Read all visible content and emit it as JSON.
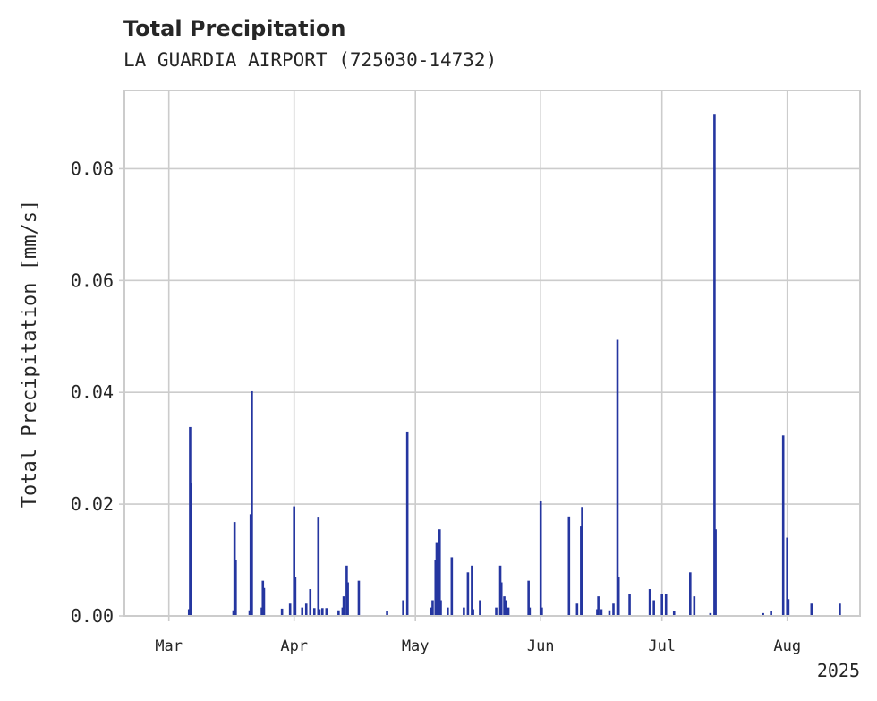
{
  "chart_data": {
    "type": "bar",
    "title": "Total Precipitation",
    "subtitle": "LA GUARDIA AIRPORT (725030-14732)",
    "ylabel": "Total Precipitation [mm/s]",
    "xlabel": "",
    "x_tick_labels": [
      "Mar",
      "Apr",
      "May",
      "Jun",
      "Jul",
      "Aug"
    ],
    "x_tick_dates": [
      "2025-03-01",
      "2025-04-01",
      "2025-05-01",
      "2025-06-01",
      "2025-07-01",
      "2025-08-01"
    ],
    "x_offset_label": "2025",
    "xlim": [
      "2025-02-18",
      "2025-08-19"
    ],
    "ylim": [
      0,
      0.094
    ],
    "y_ticks": [
      0.0,
      0.02,
      0.04,
      0.06,
      0.08
    ],
    "y_tick_labels": [
      "0.00",
      "0.02",
      "0.04",
      "0.06",
      "0.08"
    ],
    "grid": true,
    "legend": false,
    "color": "#2536a0",
    "series": [
      {
        "points": [
          [
            "2025-03-06",
            0.0012
          ],
          [
            "2025-03-06",
            0.0338
          ],
          [
            "2025-03-06",
            0.0237
          ],
          [
            "2025-03-17",
            0.001
          ],
          [
            "2025-03-17",
            0.0168
          ],
          [
            "2025-03-17",
            0.01
          ],
          [
            "2025-03-21",
            0.001
          ],
          [
            "2025-03-21",
            0.0182
          ],
          [
            "2025-03-21",
            0.0402
          ],
          [
            "2025-03-24",
            0.0015
          ],
          [
            "2025-03-24",
            0.0063
          ],
          [
            "2025-03-24",
            0.005
          ],
          [
            "2025-03-29",
            0.0013
          ],
          [
            "2025-03-31",
            0.0022
          ],
          [
            "2025-04-01",
            0.0196
          ],
          [
            "2025-04-01",
            0.007
          ],
          [
            "2025-04-03",
            0.0015
          ],
          [
            "2025-04-04",
            0.0022
          ],
          [
            "2025-04-05",
            0.0048
          ],
          [
            "2025-04-06",
            0.0014
          ],
          [
            "2025-04-07",
            0.0176
          ],
          [
            "2025-04-07",
            0.0012
          ],
          [
            "2025-04-08",
            0.0014
          ],
          [
            "2025-04-09",
            0.0014
          ],
          [
            "2025-04-12",
            0.001
          ],
          [
            "2025-04-13",
            0.0015
          ],
          [
            "2025-04-13",
            0.0035
          ],
          [
            "2025-04-14",
            0.009
          ],
          [
            "2025-04-14",
            0.006
          ],
          [
            "2025-04-17",
            0.0063
          ],
          [
            "2025-04-24",
            0.0008
          ],
          [
            "2025-04-28",
            0.0028
          ],
          [
            "2025-04-29",
            0.033
          ],
          [
            "2025-05-05",
            0.0015
          ],
          [
            "2025-05-05",
            0.0028
          ],
          [
            "2025-05-06",
            0.01
          ],
          [
            "2025-05-06",
            0.0132
          ],
          [
            "2025-05-07",
            0.0155
          ],
          [
            "2025-05-07",
            0.0028
          ],
          [
            "2025-05-09",
            0.0015
          ],
          [
            "2025-05-10",
            0.0105
          ],
          [
            "2025-05-13",
            0.0015
          ],
          [
            "2025-05-14",
            0.0078
          ],
          [
            "2025-05-15",
            0.009
          ],
          [
            "2025-05-15",
            0.0012
          ],
          [
            "2025-05-17",
            0.0028
          ],
          [
            "2025-05-21",
            0.0015
          ],
          [
            "2025-05-22",
            0.009
          ],
          [
            "2025-05-22",
            0.006
          ],
          [
            "2025-05-23",
            0.0035
          ],
          [
            "2025-05-23",
            0.0028
          ],
          [
            "2025-05-24",
            0.0015
          ],
          [
            "2025-05-29",
            0.0063
          ],
          [
            "2025-05-29",
            0.0015
          ],
          [
            "2025-06-01",
            0.0205
          ],
          [
            "2025-06-01",
            0.0015
          ],
          [
            "2025-06-08",
            0.0178
          ],
          [
            "2025-06-10",
            0.0022
          ],
          [
            "2025-06-11",
            0.016
          ],
          [
            "2025-06-11",
            0.0195
          ],
          [
            "2025-06-15",
            0.0012
          ],
          [
            "2025-06-15",
            0.0035
          ],
          [
            "2025-06-16",
            0.0012
          ],
          [
            "2025-06-18",
            0.001
          ],
          [
            "2025-06-19",
            0.0022
          ],
          [
            "2025-06-20",
            0.0494
          ],
          [
            "2025-06-20",
            0.007
          ],
          [
            "2025-06-23",
            0.004
          ],
          [
            "2025-06-28",
            0.0048
          ],
          [
            "2025-06-29",
            0.0028
          ],
          [
            "2025-07-01",
            0.004
          ],
          [
            "2025-07-02",
            0.004
          ],
          [
            "2025-07-04",
            0.0008
          ],
          [
            "2025-07-08",
            0.0078
          ],
          [
            "2025-07-09",
            0.0035
          ],
          [
            "2025-07-13",
            0.0005
          ],
          [
            "2025-07-14",
            0.0898
          ],
          [
            "2025-07-14",
            0.0155
          ],
          [
            "2025-07-26",
            0.0005
          ],
          [
            "2025-07-28",
            0.0008
          ],
          [
            "2025-07-31",
            0.0323
          ],
          [
            "2025-08-01",
            0.014
          ],
          [
            "2025-08-01",
            0.003
          ],
          [
            "2025-08-07",
            0.0022
          ],
          [
            "2025-08-14",
            0.0022
          ]
        ]
      }
    ]
  }
}
